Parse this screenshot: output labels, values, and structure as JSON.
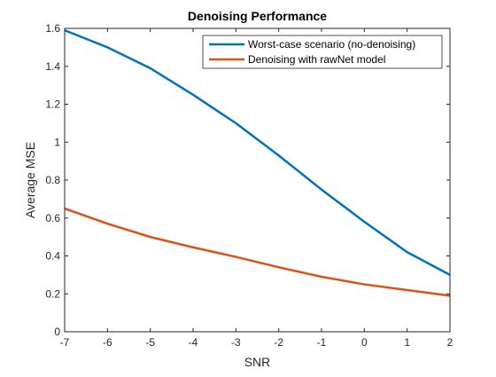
{
  "chart_data": {
    "type": "line",
    "title": "Denoising Performance",
    "xlabel": "SNR",
    "ylabel": "Average MSE",
    "xlim": [
      -7,
      2
    ],
    "ylim": [
      0,
      1.6
    ],
    "x_ticks": [
      -7,
      -6,
      -5,
      -4,
      -3,
      -2,
      -1,
      0,
      1,
      2
    ],
    "y_ticks": [
      0,
      0.2,
      0.4,
      0.6,
      0.8,
      1,
      1.2,
      1.4,
      1.6
    ],
    "x_tick_labels": [
      "-7",
      "-6",
      "-5",
      "-4",
      "-3",
      "-2",
      "-1",
      "0",
      "1",
      "2"
    ],
    "y_tick_labels": [
      "0",
      "0.2",
      "0.4",
      "0.6",
      "0.8",
      "1",
      "1.2",
      "1.4",
      "1.6"
    ],
    "grid": false,
    "legend_position": "top-right",
    "x": [
      -7,
      -6,
      -5,
      -4,
      -3,
      -2,
      -1,
      0,
      1,
      2
    ],
    "series": [
      {
        "name": "Worst-case scenario (no-denoising)",
        "color": "#0072bd",
        "values": [
          1.59,
          1.5,
          1.39,
          1.25,
          1.1,
          0.93,
          0.75,
          0.58,
          0.42,
          0.3
        ]
      },
      {
        "name": "Denoising with rawNet model",
        "color": "#d95319",
        "values": [
          0.65,
          0.57,
          0.5,
          0.445,
          0.395,
          0.34,
          0.29,
          0.25,
          0.22,
          0.19
        ]
      }
    ]
  }
}
